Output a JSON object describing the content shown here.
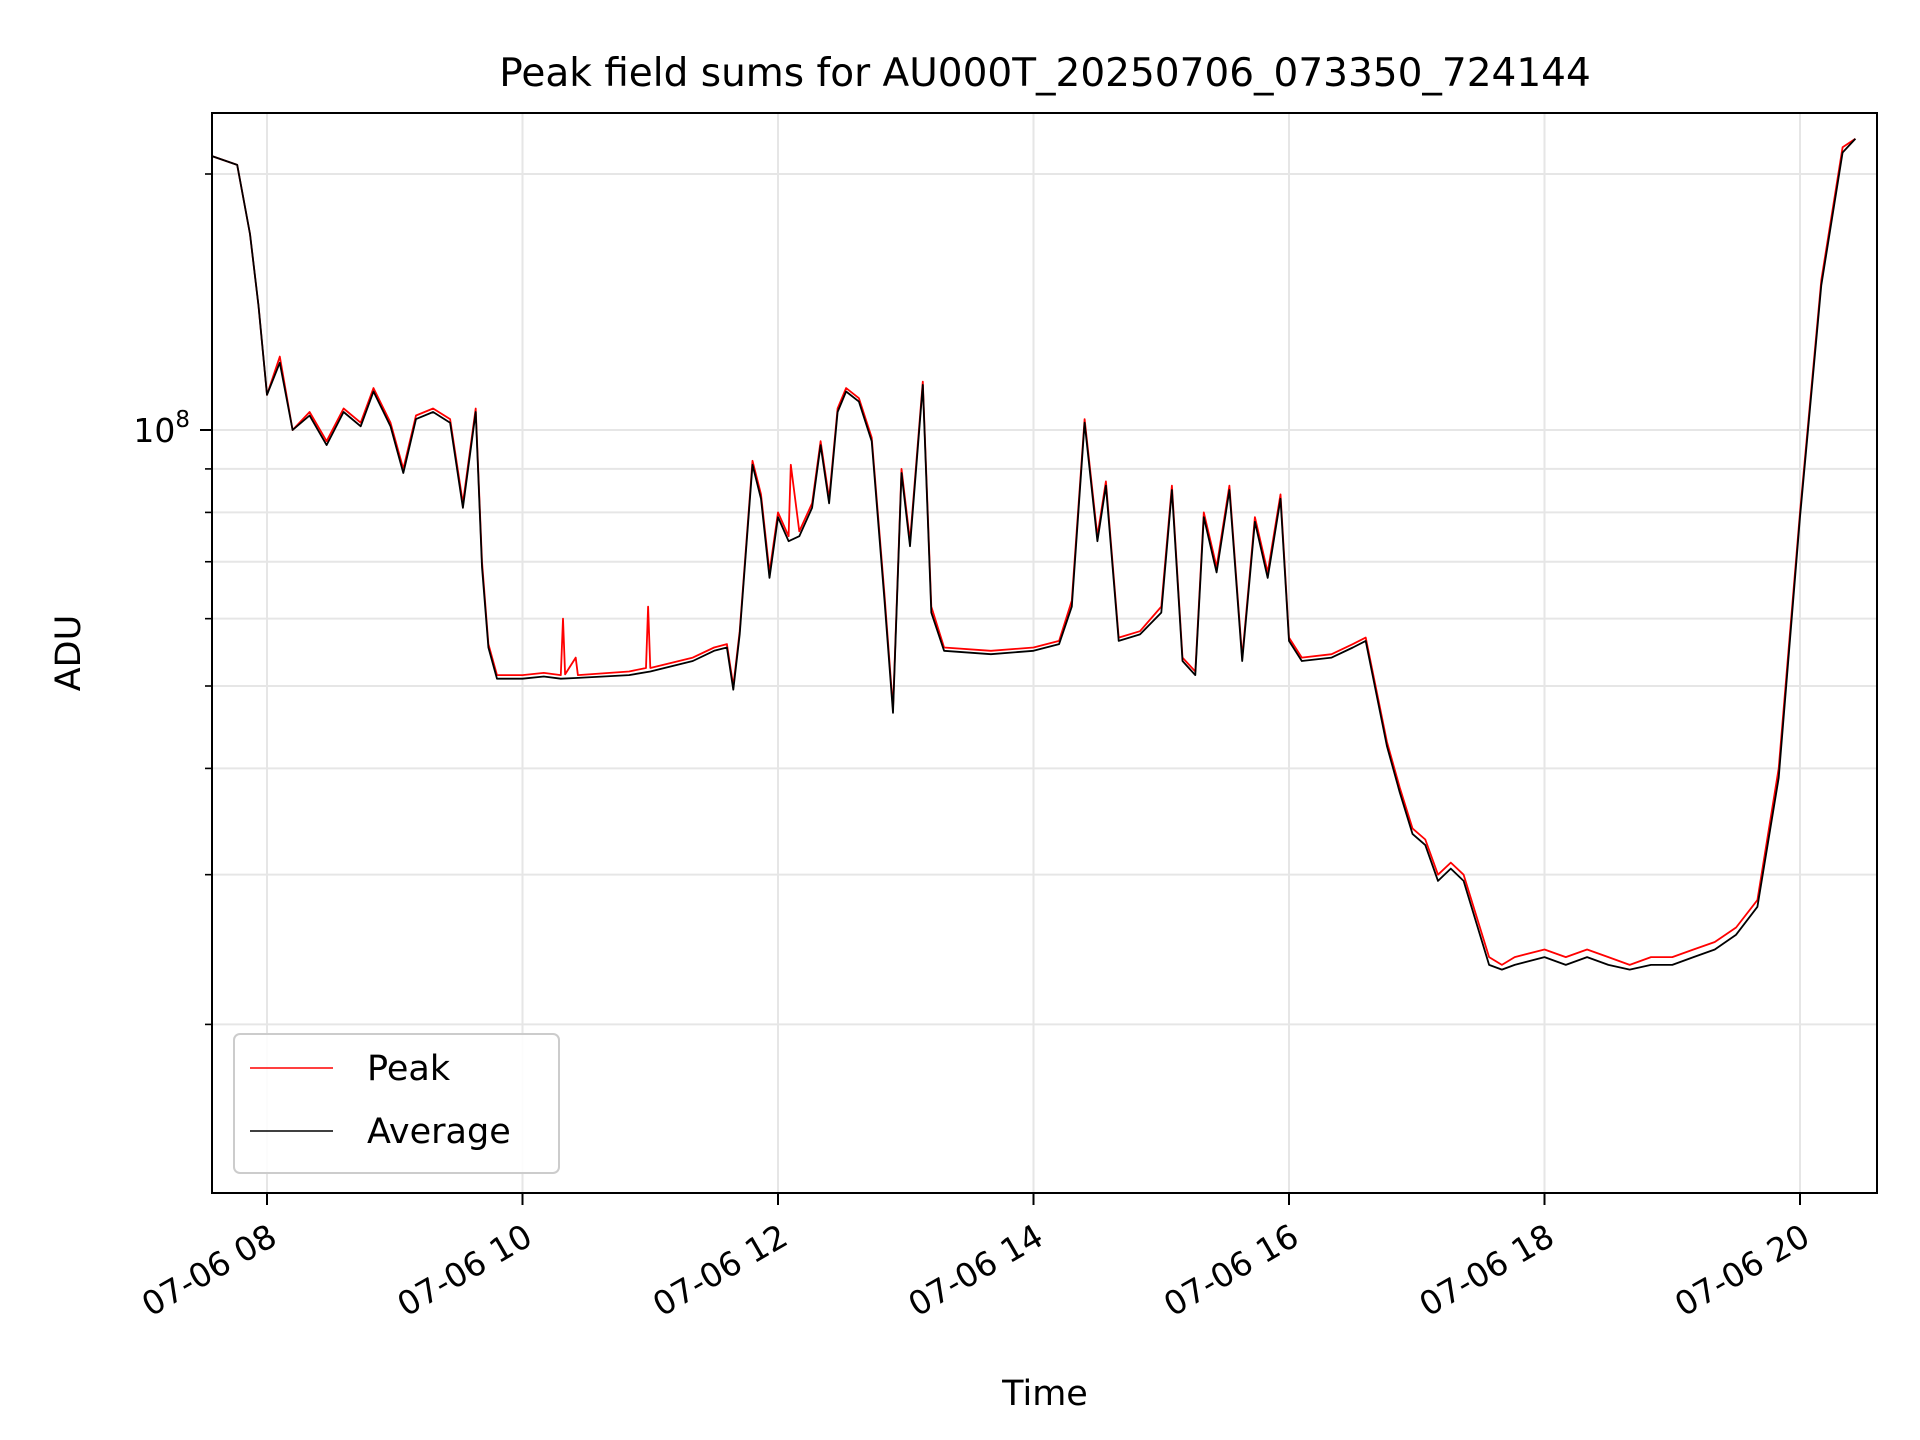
{
  "chart_data": {
    "type": "line",
    "title": "Peak field sums for AU000T_20250706_073350_724144",
    "xlabel": "Time",
    "ylabel": "ADU",
    "x_ticks": [
      "07-06 08",
      "07-06 10",
      "07-06 12",
      "07-06 14",
      "07-06 16",
      "07-06 18",
      "07-06 20"
    ],
    "y_tick_label": {
      "base": "10",
      "exponent": "8"
    },
    "y_scale": "log",
    "grid": true,
    "legend_position": "lower-left",
    "series": [
      {
        "name": "Peak",
        "color": "#ff0000",
        "points": [
          [
            "07-06 07:34",
            210000000.0
          ],
          [
            "07-06 07:46",
            205000000.0
          ],
          [
            "07-06 07:52",
            170000000.0
          ],
          [
            "07-06 07:56",
            140000000.0
          ],
          [
            "07-06 08:00",
            110000000.0
          ],
          [
            "07-06 08:06",
            122000000.0
          ],
          [
            "07-06 08:12",
            100000000.0
          ],
          [
            "07-06 08:20",
            105000000.0
          ],
          [
            "07-06 08:28",
            97000000.0
          ],
          [
            "07-06 08:36",
            106000000.0
          ],
          [
            "07-06 08:44",
            102000000.0
          ],
          [
            "07-06 08:50",
            112000000.0
          ],
          [
            "07-06 08:58",
            102000000.0
          ],
          [
            "07-06 09:04",
            90000000.0
          ],
          [
            "07-06 09:10",
            104000000.0
          ],
          [
            "07-06 09:18",
            106000000.0
          ],
          [
            "07-06 09:26",
            103000000.0
          ],
          [
            "07-06 09:32",
            82000000.0
          ],
          [
            "07-06 09:38",
            106000000.0
          ],
          [
            "07-06 09:41",
            70000000.0
          ],
          [
            "07-06 09:44",
            56000000.0
          ],
          [
            "07-06 09:48",
            51500000.0
          ],
          [
            "07-06 10:00",
            51500000.0
          ],
          [
            "07-06 10:10",
            51800000.0
          ],
          [
            "07-06 10:18",
            51500000.0
          ],
          [
            "07-06 10:19",
            60000000.0
          ],
          [
            "07-06 10:20",
            51600000.0
          ],
          [
            "07-06 10:25",
            54000000.0
          ],
          [
            "07-06 10:26",
            51500000.0
          ],
          [
            "07-06 10:50",
            52000000.0
          ],
          [
            "07-06 10:58",
            52500000.0
          ],
          [
            "07-06 10:59",
            62000000.0
          ],
          [
            "07-06 11:00",
            52500000.0
          ],
          [
            "07-06 11:20",
            54000000.0
          ],
          [
            "07-06 11:30",
            55500000.0
          ],
          [
            "07-06 11:36",
            56000000.0
          ],
          [
            "07-06 11:39",
            50000000.0
          ],
          [
            "07-06 11:42",
            58000000.0
          ],
          [
            "07-06 11:48",
            92000000.0
          ],
          [
            "07-06 11:52",
            84000000.0
          ],
          [
            "07-06 11:56",
            68000000.0
          ],
          [
            "07-06 12:00",
            80000000.0
          ],
          [
            "07-06 12:05",
            75000000.0
          ],
          [
            "07-06 12:06",
            91000000.0
          ],
          [
            "07-06 12:10",
            76000000.0
          ],
          [
            "07-06 12:16",
            82000000.0
          ],
          [
            "07-06 12:20",
            97000000.0
          ],
          [
            "07-06 12:24",
            83000000.0
          ],
          [
            "07-06 12:28",
            106000000.0
          ],
          [
            "07-06 12:32",
            112000000.0
          ],
          [
            "07-06 12:38",
            109000000.0
          ],
          [
            "07-06 12:44",
            98000000.0
          ],
          [
            "07-06 12:50",
            64000000.0
          ],
          [
            "07-06 12:54",
            47000000.0
          ],
          [
            "07-06 12:58",
            90000000.0
          ],
          [
            "07-06 13:02",
            74000000.0
          ],
          [
            "07-06 13:08",
            114000000.0
          ],
          [
            "07-06 13:12",
            62000000.0
          ],
          [
            "07-06 13:18",
            55500000.0
          ],
          [
            "07-06 13:40",
            55000000.0
          ],
          [
            "07-06 14:00",
            55500000.0
          ],
          [
            "07-06 14:12",
            56500000.0
          ],
          [
            "07-06 14:18",
            63000000.0
          ],
          [
            "07-06 14:24",
            103000000.0
          ],
          [
            "07-06 14:30",
            75000000.0
          ],
          [
            "07-06 14:34",
            87000000.0
          ],
          [
            "07-06 14:40",
            57000000.0
          ],
          [
            "07-06 14:50",
            58000000.0
          ],
          [
            "07-06 15:00",
            62000000.0
          ],
          [
            "07-06 15:05",
            86000000.0
          ],
          [
            "07-06 15:10",
            54000000.0
          ],
          [
            "07-06 15:16",
            52000000.0
          ],
          [
            "07-06 15:20",
            80000000.0
          ],
          [
            "07-06 15:26",
            69000000.0
          ],
          [
            "07-06 15:32",
            86000000.0
          ],
          [
            "07-06 15:38",
            54000000.0
          ],
          [
            "07-06 15:44",
            79000000.0
          ],
          [
            "07-06 15:50",
            68000000.0
          ],
          [
            "07-06 15:56",
            84000000.0
          ],
          [
            "07-06 16:00",
            57000000.0
          ],
          [
            "07-06 16:06",
            54000000.0
          ],
          [
            "07-06 16:20",
            54500000.0
          ],
          [
            "07-06 16:30",
            56000000.0
          ],
          [
            "07-06 16:36",
            57000000.0
          ],
          [
            "07-06 16:46",
            43000000.0
          ],
          [
            "07-06 16:52",
            38000000.0
          ],
          [
            "07-06 16:58",
            34000000.0
          ],
          [
            "07-06 17:04",
            33000000.0
          ],
          [
            "07-06 17:10",
            30000000.0
          ],
          [
            "07-06 17:16",
            31000000.0
          ],
          [
            "07-06 17:22",
            30000000.0
          ],
          [
            "07-06 17:34",
            24000000.0
          ],
          [
            "07-06 17:40",
            23500000.0
          ],
          [
            "07-06 17:46",
            24000000.0
          ],
          [
            "07-06 18:00",
            24500000.0
          ],
          [
            "07-06 18:10",
            24000000.0
          ],
          [
            "07-06 18:20",
            24500000.0
          ],
          [
            "07-06 18:30",
            24000000.0
          ],
          [
            "07-06 18:40",
            23500000.0
          ],
          [
            "07-06 18:50",
            24000000.0
          ],
          [
            "07-06 19:00",
            24000000.0
          ],
          [
            "07-06 19:10",
            24500000.0
          ],
          [
            "07-06 19:20",
            25000000.0
          ],
          [
            "07-06 19:30",
            26000000.0
          ],
          [
            "07-06 19:40",
            28000000.0
          ],
          [
            "07-06 19:50",
            40000000.0
          ],
          [
            "07-06 20:00",
            80000000.0
          ],
          [
            "07-06 20:10",
            150000000.0
          ],
          [
            "07-06 20:20",
            215000000.0
          ],
          [
            "07-06 20:26",
            220000000.0
          ]
        ]
      },
      {
        "name": "Average",
        "color": "#000000",
        "points": [
          [
            "07-06 07:34",
            210000000.0
          ],
          [
            "07-06 07:46",
            205000000.0
          ],
          [
            "07-06 07:52",
            170000000.0
          ],
          [
            "07-06 07:56",
            140000000.0
          ],
          [
            "07-06 08:00",
            110000000.0
          ],
          [
            "07-06 08:06",
            120000000.0
          ],
          [
            "07-06 08:12",
            100000000.0
          ],
          [
            "07-06 08:20",
            104000000.0
          ],
          [
            "07-06 08:28",
            96000000.0
          ],
          [
            "07-06 08:36",
            105000000.0
          ],
          [
            "07-06 08:44",
            101000000.0
          ],
          [
            "07-06 08:50",
            111000000.0
          ],
          [
            "07-06 08:58",
            101000000.0
          ],
          [
            "07-06 09:04",
            89000000.0
          ],
          [
            "07-06 09:10",
            103000000.0
          ],
          [
            "07-06 09:18",
            105000000.0
          ],
          [
            "07-06 09:26",
            102000000.0
          ],
          [
            "07-06 09:32",
            81000000.0
          ],
          [
            "07-06 09:38",
            105000000.0
          ],
          [
            "07-06 09:41",
            69000000.0
          ],
          [
            "07-06 09:44",
            55500000.0
          ],
          [
            "07-06 09:48",
            51000000.0
          ],
          [
            "07-06 10:00",
            51000000.0
          ],
          [
            "07-06 10:10",
            51300000.0
          ],
          [
            "07-06 10:18",
            51000000.0
          ],
          [
            "07-06 10:25",
            51100000.0
          ],
          [
            "07-06 10:50",
            51500000.0
          ],
          [
            "07-06 11:00",
            52000000.0
          ],
          [
            "07-06 11:20",
            53500000.0
          ],
          [
            "07-06 11:30",
            55000000.0
          ],
          [
            "07-06 11:36",
            55500000.0
          ],
          [
            "07-06 11:39",
            49500000.0
          ],
          [
            "07-06 11:42",
            57500000.0
          ],
          [
            "07-06 11:48",
            91000000.0
          ],
          [
            "07-06 11:52",
            83000000.0
          ],
          [
            "07-06 11:56",
            67000000.0
          ],
          [
            "07-06 12:00",
            79000000.0
          ],
          [
            "07-06 12:05",
            74000000.0
          ],
          [
            "07-06 12:10",
            75000000.0
          ],
          [
            "07-06 12:16",
            81000000.0
          ],
          [
            "07-06 12:20",
            96000000.0
          ],
          [
            "07-06 12:24",
            82000000.0
          ],
          [
            "07-06 12:28",
            105000000.0
          ],
          [
            "07-06 12:32",
            111000000.0
          ],
          [
            "07-06 12:38",
            108000000.0
          ],
          [
            "07-06 12:44",
            97000000.0
          ],
          [
            "07-06 12:50",
            63000000.0
          ],
          [
            "07-06 12:54",
            46500000.0
          ],
          [
            "07-06 12:58",
            89000000.0
          ],
          [
            "07-06 13:02",
            73000000.0
          ],
          [
            "07-06 13:08",
            113000000.0
          ],
          [
            "07-06 13:12",
            61000000.0
          ],
          [
            "07-06 13:18",
            55000000.0
          ],
          [
            "07-06 13:40",
            54500000.0
          ],
          [
            "07-06 14:00",
            55000000.0
          ],
          [
            "07-06 14:12",
            56000000.0
          ],
          [
            "07-06 14:18",
            62000000.0
          ],
          [
            "07-06 14:24",
            102000000.0
          ],
          [
            "07-06 14:30",
            74000000.0
          ],
          [
            "07-06 14:34",
            86000000.0
          ],
          [
            "07-06 14:40",
            56500000.0
          ],
          [
            "07-06 14:50",
            57500000.0
          ],
          [
            "07-06 15:00",
            61000000.0
          ],
          [
            "07-06 15:05",
            85000000.0
          ],
          [
            "07-06 15:10",
            53500000.0
          ],
          [
            "07-06 15:16",
            51500000.0
          ],
          [
            "07-06 15:20",
            79000000.0
          ],
          [
            "07-06 15:26",
            68000000.0
          ],
          [
            "07-06 15:32",
            85000000.0
          ],
          [
            "07-06 15:38",
            53500000.0
          ],
          [
            "07-06 15:44",
            78000000.0
          ],
          [
            "07-06 15:50",
            67000000.0
          ],
          [
            "07-06 15:56",
            83000000.0
          ],
          [
            "07-06 16:00",
            56500000.0
          ],
          [
            "07-06 16:06",
            53500000.0
          ],
          [
            "07-06 16:20",
            54000000.0
          ],
          [
            "07-06 16:30",
            55500000.0
          ],
          [
            "07-06 16:36",
            56500000.0
          ],
          [
            "07-06 16:46",
            42500000.0
          ],
          [
            "07-06 16:52",
            37500000.0
          ],
          [
            "07-06 16:58",
            33500000.0
          ],
          [
            "07-06 17:04",
            32500000.0
          ],
          [
            "07-06 17:10",
            29500000.0
          ],
          [
            "07-06 17:16",
            30500000.0
          ],
          [
            "07-06 17:22",
            29500000.0
          ],
          [
            "07-06 17:34",
            23500000.0
          ],
          [
            "07-06 17:40",
            23200000.0
          ],
          [
            "07-06 17:46",
            23500000.0
          ],
          [
            "07-06 18:00",
            24000000.0
          ],
          [
            "07-06 18:10",
            23500000.0
          ],
          [
            "07-06 18:20",
            24000000.0
          ],
          [
            "07-06 18:30",
            23500000.0
          ],
          [
            "07-06 18:40",
            23200000.0
          ],
          [
            "07-06 18:50",
            23500000.0
          ],
          [
            "07-06 19:00",
            23500000.0
          ],
          [
            "07-06 19:10",
            24000000.0
          ],
          [
            "07-06 19:20",
            24500000.0
          ],
          [
            "07-06 19:30",
            25500000.0
          ],
          [
            "07-06 19:40",
            27500000.0
          ],
          [
            "07-06 19:50",
            39000000.0
          ],
          [
            "07-06 20:00",
            79000000.0
          ],
          [
            "07-06 20:10",
            148000000.0
          ],
          [
            "07-06 20:20",
            212000000.0
          ],
          [
            "07-06 20:26",
            220000000.0
          ]
        ]
      }
    ]
  }
}
